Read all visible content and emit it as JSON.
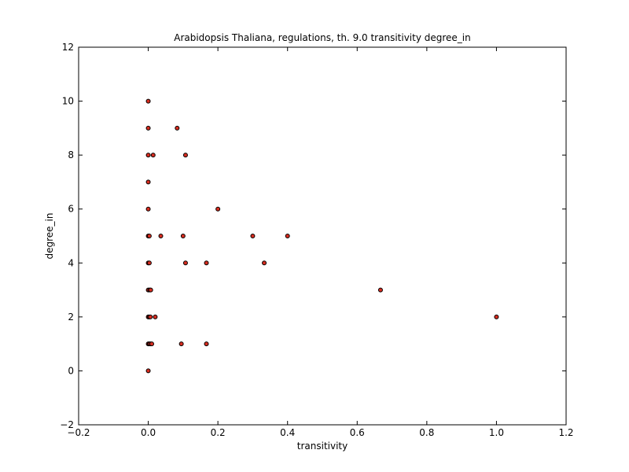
{
  "chart_data": {
    "type": "scatter",
    "title": "Arabidopsis Thaliana, regulations, th. 9.0 transitivity degree_in",
    "xlabel": "transitivity",
    "ylabel": "degree_in",
    "xlim": [
      -0.2,
      1.2
    ],
    "ylim": [
      -2,
      12
    ],
    "xticks": [
      "−0.2",
      "0.0",
      "0.2",
      "0.4",
      "0.6",
      "0.8",
      "1.0",
      "1.2"
    ],
    "yticks": [
      "−2",
      "0",
      "2",
      "4",
      "6",
      "8",
      "10",
      "12"
    ],
    "grid": false,
    "legend": "none",
    "marker_color": "#d62d20",
    "marker_edge_color": "#000000",
    "points": [
      {
        "x": 0.0,
        "y": 10
      },
      {
        "x": 0.0,
        "y": 9
      },
      {
        "x": 0.083,
        "y": 9
      },
      {
        "x": 0.0,
        "y": 8
      },
      {
        "x": 0.014,
        "y": 8
      },
      {
        "x": 0.107,
        "y": 8
      },
      {
        "x": 0.0,
        "y": 7
      },
      {
        "x": 0.0,
        "y": 6
      },
      {
        "x": 0.2,
        "y": 6
      },
      {
        "x": 0.0,
        "y": 5
      },
      {
        "x": 0.003,
        "y": 5
      },
      {
        "x": 0.036,
        "y": 5
      },
      {
        "x": 0.1,
        "y": 5
      },
      {
        "x": 0.3,
        "y": 5
      },
      {
        "x": 0.4,
        "y": 5
      },
      {
        "x": 0.0,
        "y": 4
      },
      {
        "x": 0.003,
        "y": 4
      },
      {
        "x": 0.107,
        "y": 4
      },
      {
        "x": 0.167,
        "y": 4
      },
      {
        "x": 0.333,
        "y": 4
      },
      {
        "x": 0.0,
        "y": 3
      },
      {
        "x": 0.004,
        "y": 3
      },
      {
        "x": 0.007,
        "y": 3
      },
      {
        "x": 0.667,
        "y": 3
      },
      {
        "x": 0.0,
        "y": 2
      },
      {
        "x": 0.003,
        "y": 2
      },
      {
        "x": 0.006,
        "y": 2
      },
      {
        "x": 0.02,
        "y": 2
      },
      {
        "x": 1.0,
        "y": 2
      },
      {
        "x": 0.0,
        "y": 1
      },
      {
        "x": 0.003,
        "y": 1
      },
      {
        "x": 0.006,
        "y": 1
      },
      {
        "x": 0.01,
        "y": 1
      },
      {
        "x": 0.095,
        "y": 1
      },
      {
        "x": 0.167,
        "y": 1
      },
      {
        "x": 0.0,
        "y": 0
      }
    ]
  }
}
